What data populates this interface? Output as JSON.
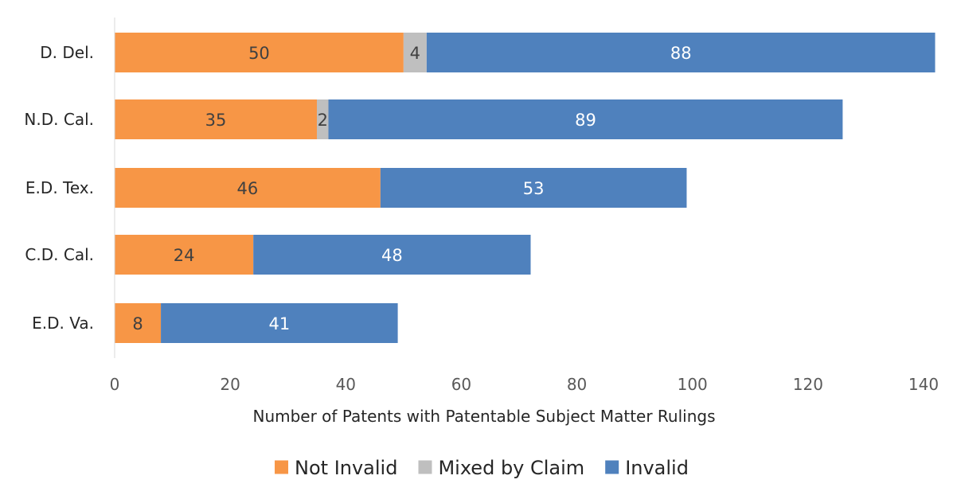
{
  "chart_data": {
    "type": "bar",
    "orientation": "horizontal",
    "stacked": true,
    "categories": [
      "D. Del.",
      "N.D. Cal.",
      "E.D. Tex.",
      "C.D. Cal.",
      "E.D. Va."
    ],
    "series": [
      {
        "name": "Not Invalid",
        "color": "#f79646",
        "label_color": "#404040",
        "values": [
          50,
          35,
          46,
          24,
          8
        ]
      },
      {
        "name": "Mixed by Claim",
        "color": "#bfbfbf",
        "label_color": "#404040",
        "values": [
          4,
          2,
          0,
          0,
          0
        ]
      },
      {
        "name": "Invalid",
        "color": "#4f81bd",
        "label_color": "#ffffff",
        "values": [
          88,
          89,
          53,
          48,
          41
        ]
      }
    ],
    "xlabel": "Number of Patents with Patentable Subject Matter Rulings",
    "ylabel": "",
    "xlim": [
      0,
      140
    ],
    "xticks": [
      0,
      20,
      40,
      60,
      80,
      100,
      120,
      140
    ],
    "grid": false,
    "legend_position": "bottom"
  }
}
